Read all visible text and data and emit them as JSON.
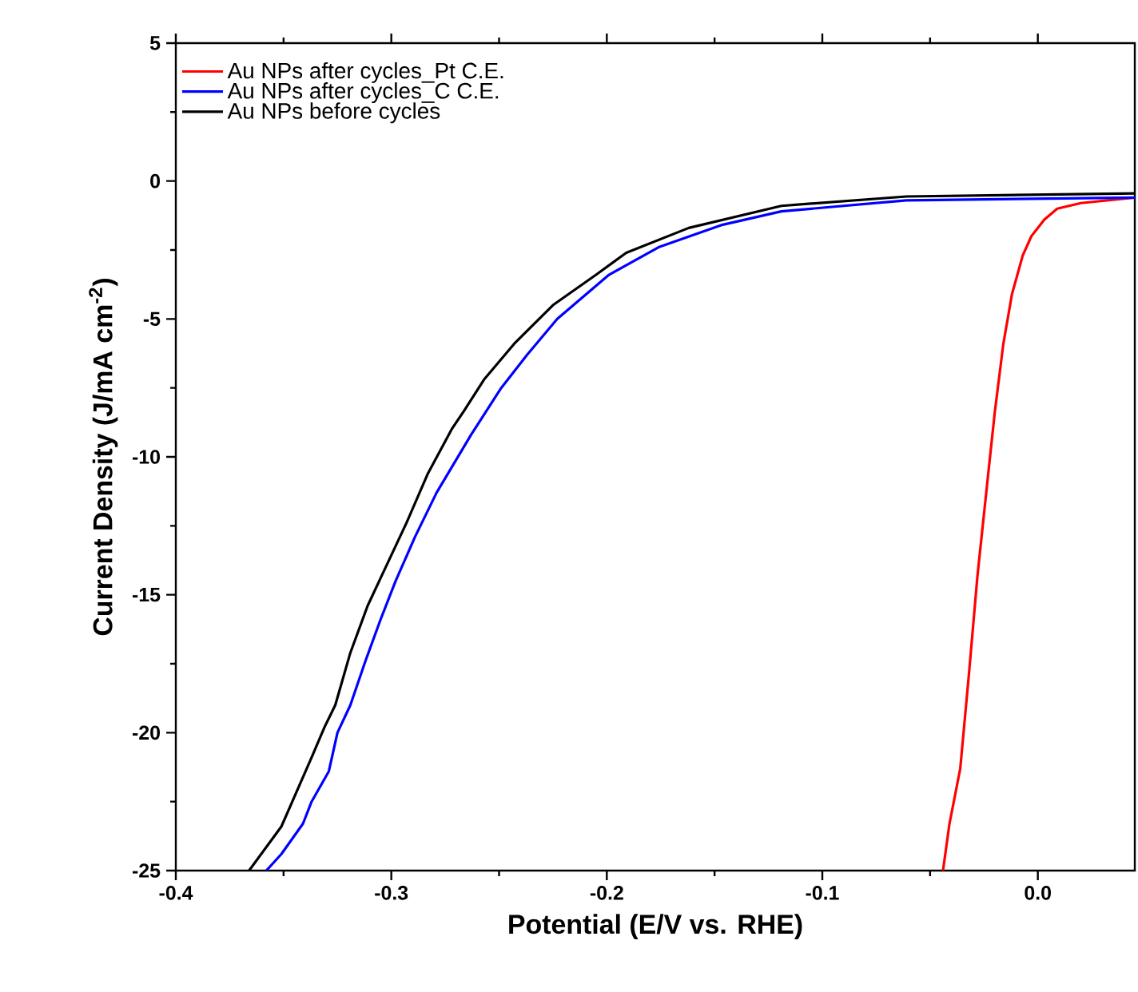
{
  "chart_data": {
    "type": "line",
    "xlabel": "Potential (E/V vs. RHE)",
    "ylabel": "Current Density (J/mA cm$^{-2}$)",
    "xlim": [
      -0.4,
      0.045
    ],
    "ylim": [
      -25,
      5
    ],
    "xticks": [
      -0.4,
      -0.3,
      -0.2,
      -0.1,
      {
        "value": 0,
        "label": "0.0"
      }
    ],
    "yticks": [
      -25,
      -20,
      -15,
      -10,
      -5,
      0,
      5
    ],
    "legend": "top left",
    "grid": false,
    "line_style": "solid",
    "series": [
      {
        "name": "Au NPs after cycles_Pt C.E.",
        "color": "#ff0000",
        "x": [
          -0.044,
          -0.041,
          -0.036,
          -0.032,
          -0.028,
          -0.023,
          -0.02,
          -0.016,
          -0.012,
          -0.007,
          -0.003,
          0.003,
          0.009,
          0.02,
          0.045
        ],
        "values": [
          -25,
          -23.3,
          -21.3,
          -17.9,
          -14.3,
          -10.6,
          -8.4,
          -5.9,
          -4.1,
          -2.7,
          -2.0,
          -1.4,
          -1.0,
          -0.8,
          -0.6
        ]
      },
      {
        "name": "Au NPs after cycles_C C.E.",
        "color": "#0000ff",
        "x": [
          -0.358,
          -0.351,
          -0.341,
          -0.337,
          -0.329,
          -0.325,
          -0.319,
          -0.312,
          -0.305,
          -0.298,
          -0.289,
          -0.279,
          -0.263,
          -0.249,
          -0.237,
          -0.223,
          -0.199,
          -0.176,
          -0.147,
          -0.119,
          -0.061,
          0.045
        ],
        "values": [
          -25,
          -24.4,
          -23.3,
          -22.5,
          -21.4,
          -20.0,
          -19.0,
          -17.4,
          -15.9,
          -14.5,
          -12.9,
          -11.3,
          -9.2,
          -7.5,
          -6.3,
          -5.0,
          -3.4,
          -2.4,
          -1.6,
          -1.1,
          -0.7,
          -0.6
        ]
      },
      {
        "name": "Au NPs before cycles",
        "color": "#000000",
        "x": [
          -0.366,
          -0.351,
          -0.337,
          -0.331,
          -0.326,
          -0.319,
          -0.311,
          -0.305,
          -0.293,
          -0.283,
          -0.272,
          -0.266,
          -0.257,
          -0.243,
          -0.225,
          -0.205,
          -0.191,
          -0.162,
          -0.119,
          -0.061,
          0.045
        ],
        "values": [
          -25,
          -23.4,
          -20.9,
          -19.8,
          -19.0,
          -17.1,
          -15.4,
          -14.4,
          -12.4,
          -10.6,
          -9.0,
          -8.3,
          -7.2,
          -5.9,
          -4.5,
          -3.4,
          -2.6,
          -1.7,
          -0.9,
          -0.56,
          -0.45
        ]
      }
    ]
  }
}
